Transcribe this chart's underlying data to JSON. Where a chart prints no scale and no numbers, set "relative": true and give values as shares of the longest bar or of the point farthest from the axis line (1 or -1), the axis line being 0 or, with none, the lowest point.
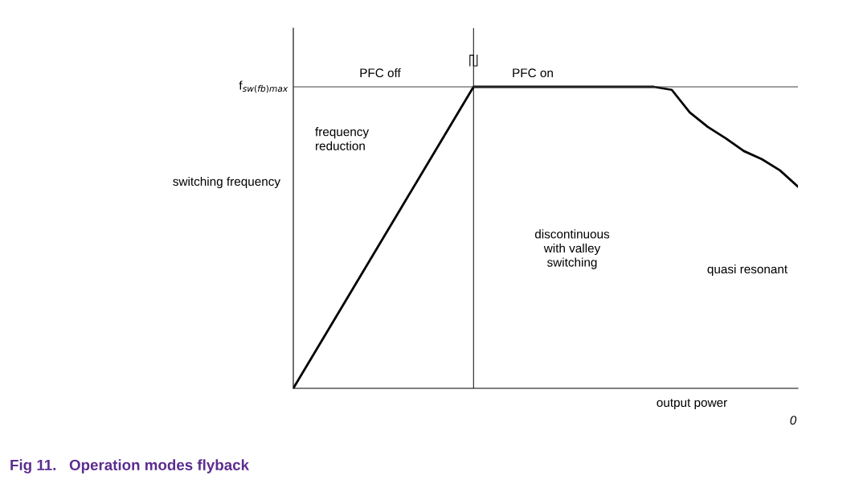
{
  "chart_data": {
    "type": "line",
    "title": "Fig 11.   Operation modes flyback",
    "xlabel": "output power",
    "ylabel": "switching frequency",
    "relative": true,
    "marker": "none",
    "line_style": "solid",
    "categories": [
      null,
      null,
      null,
      null,
      null,
      null,
      null,
      null,
      null,
      null,
      null,
      null,
      null,
      null,
      null,
      null,
      null,
      null,
      null,
      null,
      null,
      null,
      null,
      null,
      null,
      null,
      null,
      null,
      null
    ],
    "series": [
      {
        "color": "#000000",
        "values": [
          0,
          0.1,
          0.2,
          0.3,
          0.4,
          0.5,
          0.6,
          0.7,
          0.8,
          0.9,
          1,
          1,
          1,
          1,
          1,
          1,
          1,
          1,
          1,
          1,
          1,
          0.99,
          0.915,
          0.867,
          0.829,
          0.787,
          0.76,
          0.723,
          0.669
        ]
      }
    ],
    "ref_lines": [
      {
        "axis": "y",
        "value": 1,
        "label": "f$_{sw(fb)max}$",
        "color": "#404040"
      }
    ],
    "annotations": [
      "PFC off",
      "PFC on",
      "frequency reduction",
      "discontinuous with valley switching",
      "quasi resonant",
      "0"
    ]
  }
}
